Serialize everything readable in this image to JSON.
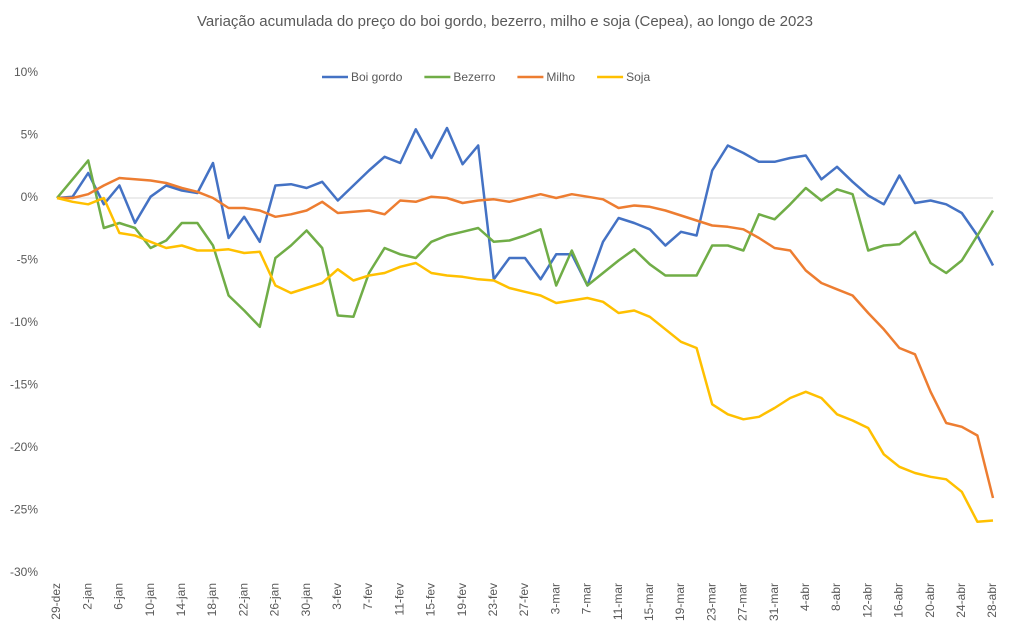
{
  "chart_data": {
    "type": "line",
    "title": "Variação acumulada do preço do boi gordo, bezerro, milho e soja (Cepea), ao longo de 2023",
    "categories": [
      "29-dez",
      null,
      "2-jan",
      null,
      "6-jan",
      null,
      "10-jan",
      null,
      "14-jan",
      null,
      "18-jan",
      null,
      "22-jan",
      null,
      "26-jan",
      null,
      "30-jan",
      null,
      "3-fev",
      null,
      "7-fev",
      null,
      "11-fev",
      null,
      "15-fev",
      null,
      "19-fev",
      null,
      "23-fev",
      null,
      "27-fev",
      null,
      "3-mar",
      null,
      "7-mar",
      null,
      "11-mar",
      null,
      "15-mar",
      null,
      "19-mar",
      null,
      "23-mar",
      null,
      "27-mar",
      null,
      "31-mar",
      null,
      "4-abr",
      null,
      "8-abr",
      null,
      "12-abr",
      null,
      "16-abr",
      null,
      "20-abr",
      null,
      "24-abr",
      null,
      "28-abr"
    ],
    "series": [
      {
        "name": "Boi gordo",
        "color": "#4472c4",
        "values": [
          0,
          0.1,
          2,
          -0.5,
          1,
          -2,
          0.1,
          1,
          0.6,
          0.4,
          2.8,
          -3.2,
          -1.5,
          -3.5,
          1,
          1.1,
          0.8,
          1.3,
          -0.2,
          1,
          2.2,
          3.3,
          2.8,
          5.5,
          3.2,
          5.6,
          2.7,
          4.2,
          -6.5,
          -4.8,
          -4.8,
          -6.5,
          -4.5,
          -4.5,
          -7,
          -3.5,
          -1.6,
          -2,
          -2.5,
          -3.8,
          -2.7,
          -3,
          2.2,
          4.2,
          3.6,
          2.9,
          2.9,
          3.2,
          3.4,
          1.5,
          2.5,
          1.3,
          0.2,
          -0.5,
          1.8,
          -0.4,
          -0.2,
          -0.5,
          -1.2,
          -3,
          -5.4
        ]
      },
      {
        "name": "Bezerro",
        "color": "#70ad47",
        "values": [
          0,
          1.5,
          3,
          -2.4,
          -2,
          -2.4,
          -4,
          -3.4,
          -2,
          -2,
          -3.8,
          -7.8,
          -9,
          -10.3,
          -4.8,
          -3.8,
          -2.6,
          -4,
          -9.4,
          -9.5,
          -6,
          -4,
          -4.5,
          -4.8,
          -3.5,
          -3,
          -2.7,
          -2.4,
          -3.5,
          -3.4,
          -3,
          -2.5,
          -7,
          -4.2,
          -7,
          -6,
          -5,
          -4.1,
          -5.3,
          -6.2,
          -6.2,
          -6.2,
          -3.8,
          -3.8,
          -4.2,
          -1.3,
          -1.7,
          -0.5,
          0.8,
          -0.2,
          0.7,
          0.3,
          -4.2,
          -3.8,
          -3.7,
          -2.7,
          -5.2,
          -6,
          -5,
          -3,
          -1
        ]
      },
      {
        "name": "Milho",
        "color": "#ed7d31",
        "values": [
          0,
          0,
          0.3,
          1,
          1.6,
          1.5,
          1.4,
          1.2,
          0.8,
          0.5,
          0,
          -0.8,
          -0.8,
          -1,
          -1.5,
          -1.3,
          -1,
          -0.3,
          -1.2,
          -1.1,
          -1,
          -1.3,
          -0.2,
          -0.3,
          0.1,
          0,
          -0.4,
          -0.2,
          -0.1,
          -0.3,
          0,
          0.3,
          0,
          0.3,
          0.1,
          -0.1,
          -0.8,
          -0.6,
          -0.7,
          -1,
          -1.4,
          -1.8,
          -2.2,
          -2.3,
          -2.5,
          -3.2,
          -4,
          -4.2,
          -5.8,
          -6.8,
          -7.3,
          -7.8,
          -9.2,
          -10.5,
          -12,
          -12.5,
          -15.5,
          -18,
          -18.3,
          -19,
          -24
        ]
      },
      {
        "name": "Soja",
        "color": "#ffc000",
        "values": [
          0,
          -0.3,
          -0.5,
          0,
          -2.8,
          -3,
          -3.5,
          -4,
          -3.8,
          -4.2,
          -4.2,
          -4.1,
          -4.4,
          -4.3,
          -7,
          -7.6,
          -7.2,
          -6.8,
          -5.7,
          -6.6,
          -6.2,
          -6,
          -5.5,
          -5.2,
          -6,
          -6.2,
          -6.3,
          -6.5,
          -6.6,
          -7.2,
          -7.5,
          -7.8,
          -8.4,
          -8.2,
          -8,
          -8.3,
          -9.2,
          -9,
          -9.5,
          -10.5,
          -11.5,
          -12,
          -16.5,
          -17.3,
          -17.7,
          -17.5,
          -16.8,
          -16,
          -15.5,
          -16,
          -17.3,
          -17.8,
          -18.4,
          -20.5,
          -21.5,
          -22,
          -22.3,
          -22.5,
          -23.5,
          -25.9,
          -25.8
        ]
      }
    ],
    "ylim": [
      -30,
      10
    ],
    "yticks": [
      {
        "value": -30,
        "label": "-30%"
      },
      {
        "value": -25,
        "label": "-25%"
      },
      {
        "value": -20,
        "label": "-20%"
      },
      {
        "value": -15,
        "label": "-15%"
      },
      {
        "value": -10,
        "label": "-10%"
      },
      {
        "value": -5,
        "label": "-5%"
      },
      {
        "value": 0,
        "label": "0%"
      },
      {
        "value": 5,
        "label": "5%"
      },
      {
        "value": 10,
        "label": "10%"
      }
    ],
    "grid": false,
    "legend": "top"
  }
}
